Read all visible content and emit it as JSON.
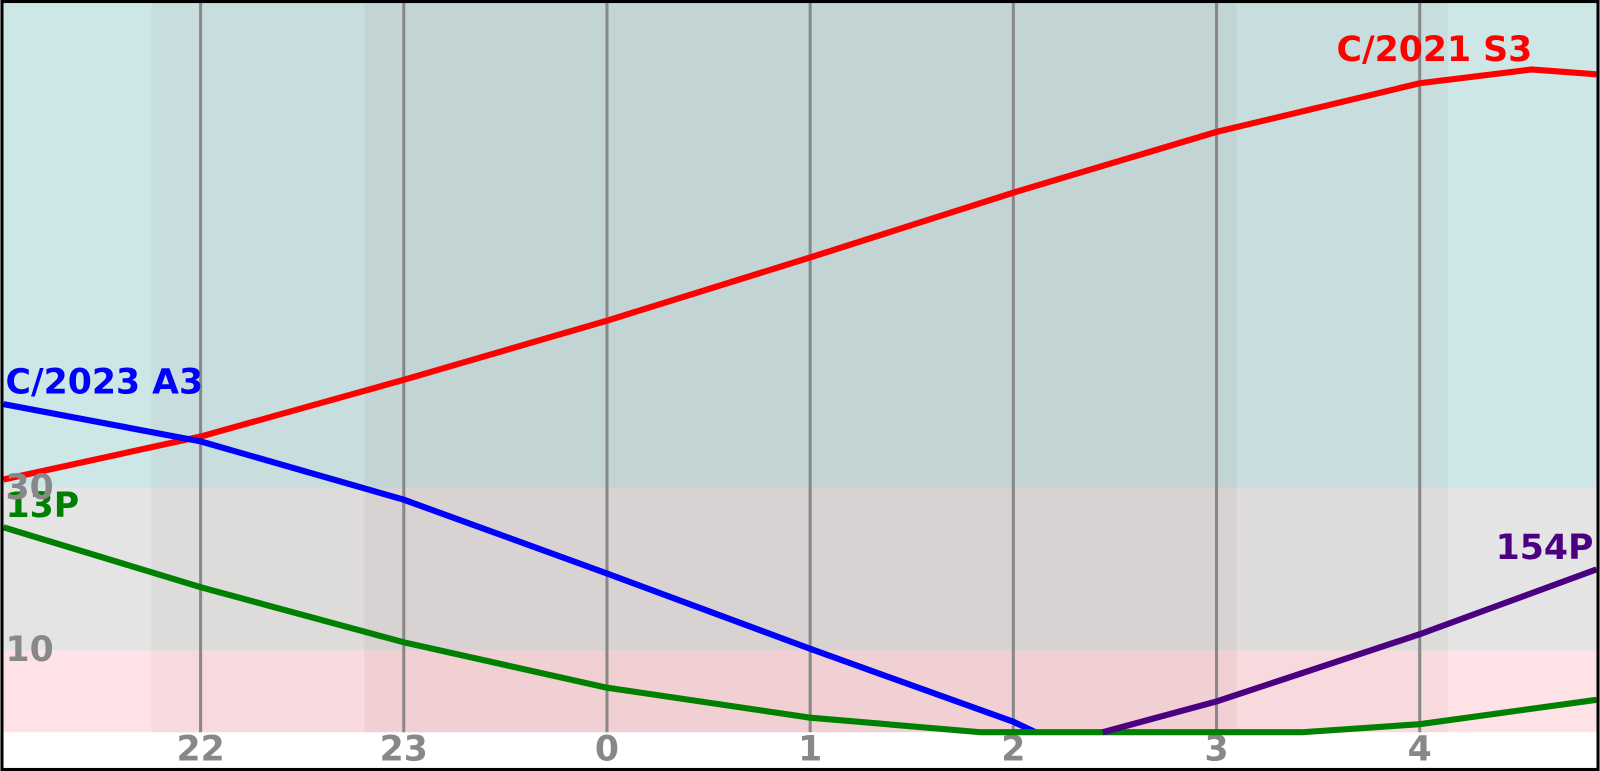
{
  "chart_data": {
    "type": "line",
    "xlim": [
      21.03,
      28.87
    ],
    "xticks": [
      22,
      23,
      {
        "value": 24,
        "label": "0"
      },
      {
        "value": 25,
        "label": "1"
      },
      {
        "value": 26,
        "label": "2"
      },
      {
        "value": 27,
        "label": "3"
      },
      {
        "value": 28,
        "label": "4"
      }
    ],
    "ylim": [
      0,
      90
    ],
    "yticks": [
      10,
      30
    ],
    "grid": true,
    "series": [
      {
        "name": "C/2021 S3",
        "color": "#ff0000",
        "x": [
          21.03,
          22,
          23,
          24,
          25,
          26,
          27,
          28,
          28.55,
          28.87
        ],
        "values": [
          31.2,
          36.5,
          43.5,
          50.8,
          58.6,
          66.6,
          74.1,
          80.1,
          81.8,
          81.2
        ]
      },
      {
        "name": "C/2023 A3",
        "color": "#0000ff",
        "x": [
          21.03,
          22,
          23,
          24,
          25,
          26,
          26.11
        ],
        "values": [
          40.5,
          35.9,
          28.7,
          19.6,
          10.3,
          1.3,
          0
        ]
      },
      {
        "name": "13P",
        "color": "#008000",
        "x": [
          21.03,
          22,
          23,
          24,
          25,
          25.84,
          27.42,
          28,
          28.87
        ],
        "values": [
          25.3,
          17.9,
          11.1,
          5.5,
          1.8,
          0,
          0,
          1.0,
          4.0
        ]
      },
      {
        "name": "154P",
        "color": "#4b0082",
        "x": [
          26.44,
          27,
          28,
          28.87
        ],
        "values": [
          0,
          3.8,
          12.1,
          20.1
        ]
      }
    ]
  }
}
